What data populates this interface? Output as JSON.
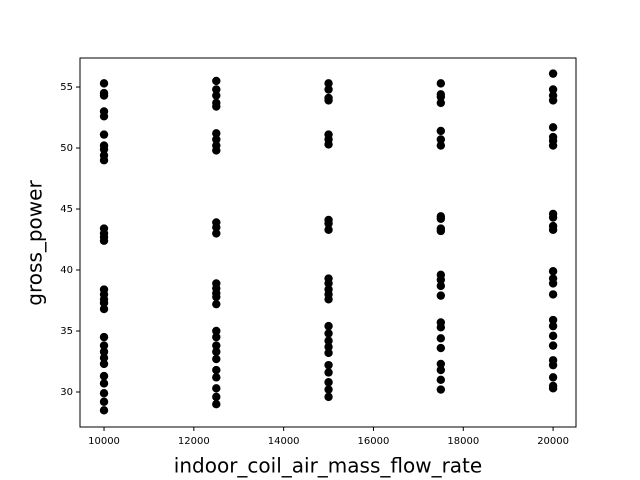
{
  "chart_data": {
    "type": "scatter",
    "x_label": "indoor_coil_air_mass_flow_rate",
    "y_label": "gross_power",
    "color": "#000000",
    "x": [
      10000,
      10000,
      10000,
      10000,
      10000,
      10000,
      10000,
      10000,
      10000,
      10000,
      10000,
      10000,
      10000,
      10000,
      10000,
      10000,
      10000,
      10000,
      10000,
      10000,
      10000,
      10000,
      10000,
      10000,
      10000,
      10000,
      10000,
      10000,
      10000,
      12500,
      12500,
      12500,
      12500,
      12500,
      12500,
      12500,
      12500,
      12500,
      12500,
      12500,
      12500,
      12500,
      12500,
      12500,
      12500,
      12500,
      12500,
      12500,
      12500,
      12500,
      12500,
      12500,
      12500,
      12500,
      12500,
      12500,
      15000,
      15000,
      15000,
      15000,
      15000,
      15000,
      15000,
      15000,
      15000,
      15000,
      15000,
      15000,
      15000,
      15000,
      15000,
      15000,
      15000,
      15000,
      15000,
      15000,
      15000,
      15000,
      15000,
      15000,
      15000,
      17500,
      17500,
      17500,
      17500,
      17500,
      17500,
      17500,
      17500,
      17500,
      17500,
      17500,
      17500,
      17500,
      17500,
      17500,
      17500,
      17500,
      17500,
      17500,
      17500,
      17500,
      17500,
      17500,
      20000,
      20000,
      20000,
      20000,
      20000,
      20000,
      20000,
      20000,
      20000,
      20000,
      20000,
      20000,
      20000,
      20000,
      20000,
      20000,
      20000,
      20000,
      20000,
      20000,
      20000,
      20000,
      20000,
      20000,
      20000
    ],
    "y": [
      55.3,
      54.5,
      54.3,
      53.0,
      52.6,
      51.1,
      50.2,
      49.9,
      49.4,
      49.0,
      43.4,
      43.0,
      42.7,
      42.4,
      38.4,
      38.0,
      37.6,
      37.3,
      36.8,
      34.5,
      33.8,
      33.3,
      32.8,
      32.3,
      31.3,
      30.7,
      29.9,
      29.2,
      28.5,
      55.5,
      54.8,
      54.3,
      53.7,
      53.4,
      51.2,
      50.7,
      50.2,
      49.8,
      43.9,
      43.5,
      43.0,
      38.9,
      38.5,
      38.1,
      37.8,
      37.2,
      35.0,
      34.5,
      33.8,
      33.3,
      32.7,
      31.8,
      31.2,
      30.3,
      29.6,
      29.0,
      55.3,
      54.8,
      54.1,
      53.9,
      51.1,
      50.7,
      50.3,
      44.1,
      43.8,
      43.3,
      39.3,
      38.9,
      38.4,
      38.0,
      37.6,
      35.4,
      34.8,
      34.2,
      33.7,
      33.2,
      32.2,
      31.6,
      30.8,
      30.2,
      29.6,
      55.3,
      54.4,
      54.2,
      53.7,
      51.4,
      50.7,
      50.2,
      44.4,
      44.2,
      43.4,
      43.2,
      39.6,
      39.2,
      38.7,
      37.9,
      35.7,
      35.3,
      34.4,
      33.6,
      32.3,
      31.8,
      31.0,
      30.2,
      56.1,
      54.8,
      54.3,
      53.9,
      51.7,
      50.9,
      50.6,
      50.2,
      44.6,
      44.3,
      43.6,
      43.3,
      39.9,
      39.3,
      38.9,
      38.0,
      35.9,
      35.4,
      34.6,
      33.8,
      32.6,
      32.2,
      31.2,
      30.5,
      30.3
    ],
    "xlim": [
      9465,
      20510
    ],
    "ylim": [
      27.13,
      57.38
    ],
    "xticks": [
      10000,
      12000,
      14000,
      16000,
      18000,
      20000
    ],
    "yticks": [
      30,
      35,
      40,
      45,
      50,
      55
    ]
  }
}
